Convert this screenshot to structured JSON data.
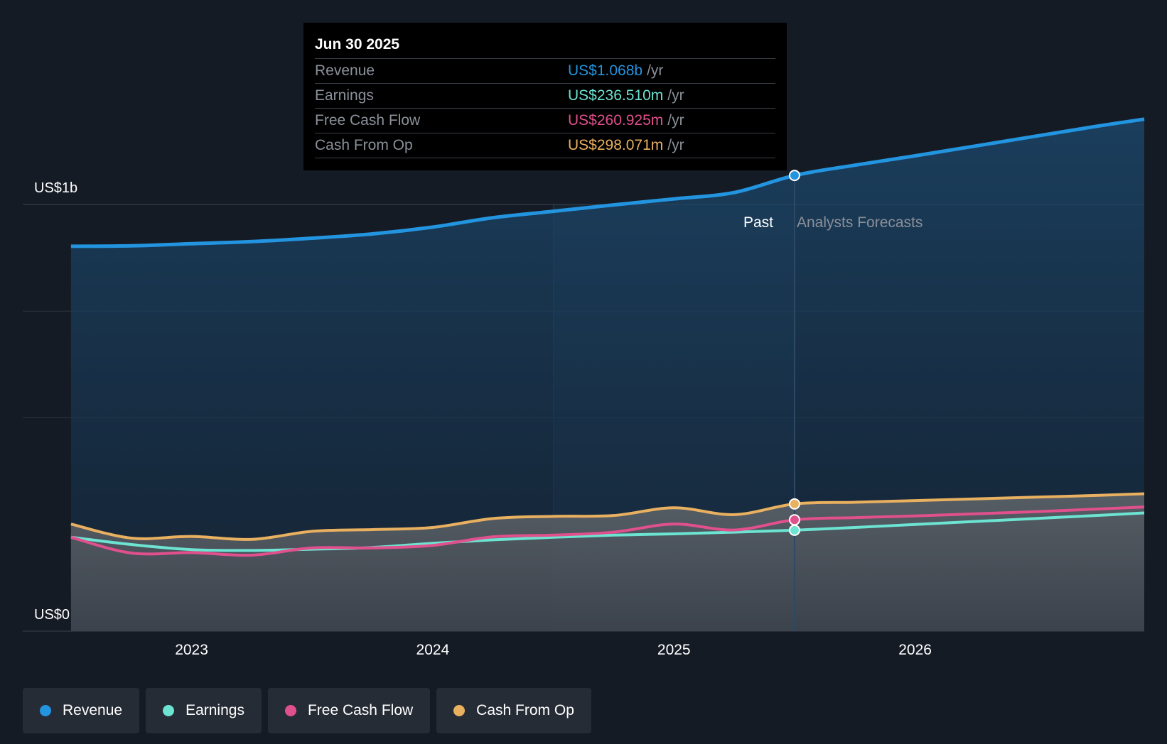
{
  "tooltip": {
    "date": "Jun 30 2025",
    "rows": [
      {
        "label": "Revenue",
        "value": "US$1.068b",
        "unit": "/yr",
        "color": "#2394df"
      },
      {
        "label": "Earnings",
        "value": "US$236.510m",
        "unit": "/yr",
        "color": "#6de3d1"
      },
      {
        "label": "Free Cash Flow",
        "value": "US$260.925m",
        "unit": "/yr",
        "color": "#e0508c"
      },
      {
        "label": "Cash From Op",
        "value": "US$298.071m",
        "unit": "/yr",
        "color": "#e9b060"
      }
    ]
  },
  "labels": {
    "past": "Past",
    "forecast": "Analysts Forecasts"
  },
  "legend": [
    {
      "label": "Revenue",
      "color": "#2394df"
    },
    {
      "label": "Earnings",
      "color": "#6de3d1"
    },
    {
      "label": "Free Cash Flow",
      "color": "#e0508c"
    },
    {
      "label": "Cash From Op",
      "color": "#e9b060"
    }
  ],
  "chart_data": {
    "type": "line",
    "title": "",
    "xlabel": "",
    "ylabel": "",
    "y_tick_labels": [
      "US$0",
      "US$1b"
    ],
    "x_tick_labels": [
      "2023",
      "2024",
      "2025",
      "2026"
    ],
    "x_ticks": [
      2023,
      2024,
      2025,
      2026
    ],
    "xlim": [
      2022.3,
      2026.95
    ],
    "ylim": [
      0,
      1200
    ],
    "y_ticks": [
      0,
      1000
    ],
    "gridlines": [
      500,
      1000
    ],
    "past_shade_range": [
      2024.5,
      2025.5
    ],
    "past_forecast_split": 2025.5,
    "grid": true,
    "legend_position": "bottom-left",
    "series": [
      {
        "name": "Revenue",
        "color": "#2394df",
        "x": [
          2022.5,
          2022.75,
          2023.0,
          2023.25,
          2023.5,
          2023.75,
          2024.0,
          2024.25,
          2024.5,
          2024.75,
          2025.0,
          2025.25,
          2025.5,
          2025.75,
          2026.0,
          2026.25,
          2026.5,
          2026.75,
          2026.95
        ],
        "values": [
          902,
          903,
          908,
          913,
          921,
          931,
          947,
          969,
          984,
          999,
          1013,
          1028,
          1068,
          1092,
          1114,
          1137,
          1160,
          1183,
          1200
        ]
      },
      {
        "name": "Earnings",
        "color": "#6de3d1",
        "x": [
          2022.5,
          2022.75,
          2023.0,
          2023.25,
          2023.5,
          2023.75,
          2024.0,
          2024.25,
          2024.5,
          2024.75,
          2025.0,
          2025.25,
          2025.5,
          2025.75,
          2026.0,
          2026.25,
          2026.5,
          2026.75,
          2026.95
        ],
        "values": [
          220,
          203,
          191,
          189,
          192,
          196,
          206,
          214,
          220,
          225,
          228,
          232,
          236.5,
          243,
          250,
          257,
          264,
          271,
          277
        ]
      },
      {
        "name": "Free Cash Flow",
        "color": "#e0508c",
        "x": [
          2022.5,
          2022.75,
          2023.0,
          2023.25,
          2023.5,
          2023.75,
          2024.0,
          2024.25,
          2024.5,
          2024.75,
          2025.0,
          2025.25,
          2025.5,
          2025.75,
          2026.0,
          2026.25,
          2026.5,
          2026.75,
          2026.95
        ],
        "values": [
          220,
          183,
          184,
          178,
          195,
          195,
          201,
          221,
          225,
          232,
          251,
          237,
          260.9,
          266,
          270,
          275,
          280,
          286,
          291
        ]
      },
      {
        "name": "Cash From Op",
        "color": "#e9b060",
        "x": [
          2022.5,
          2022.75,
          2023.0,
          2023.25,
          2023.5,
          2023.75,
          2024.0,
          2024.25,
          2024.5,
          2024.75,
          2025.0,
          2025.25,
          2025.5,
          2025.75,
          2026.0,
          2026.25,
          2026.5,
          2026.75,
          2026.95
        ],
        "values": [
          251,
          218,
          222,
          215,
          234,
          238,
          243,
          264,
          269,
          271,
          289,
          273,
          298.1,
          302,
          306,
          310,
          314,
          318,
          322
        ]
      }
    ]
  }
}
